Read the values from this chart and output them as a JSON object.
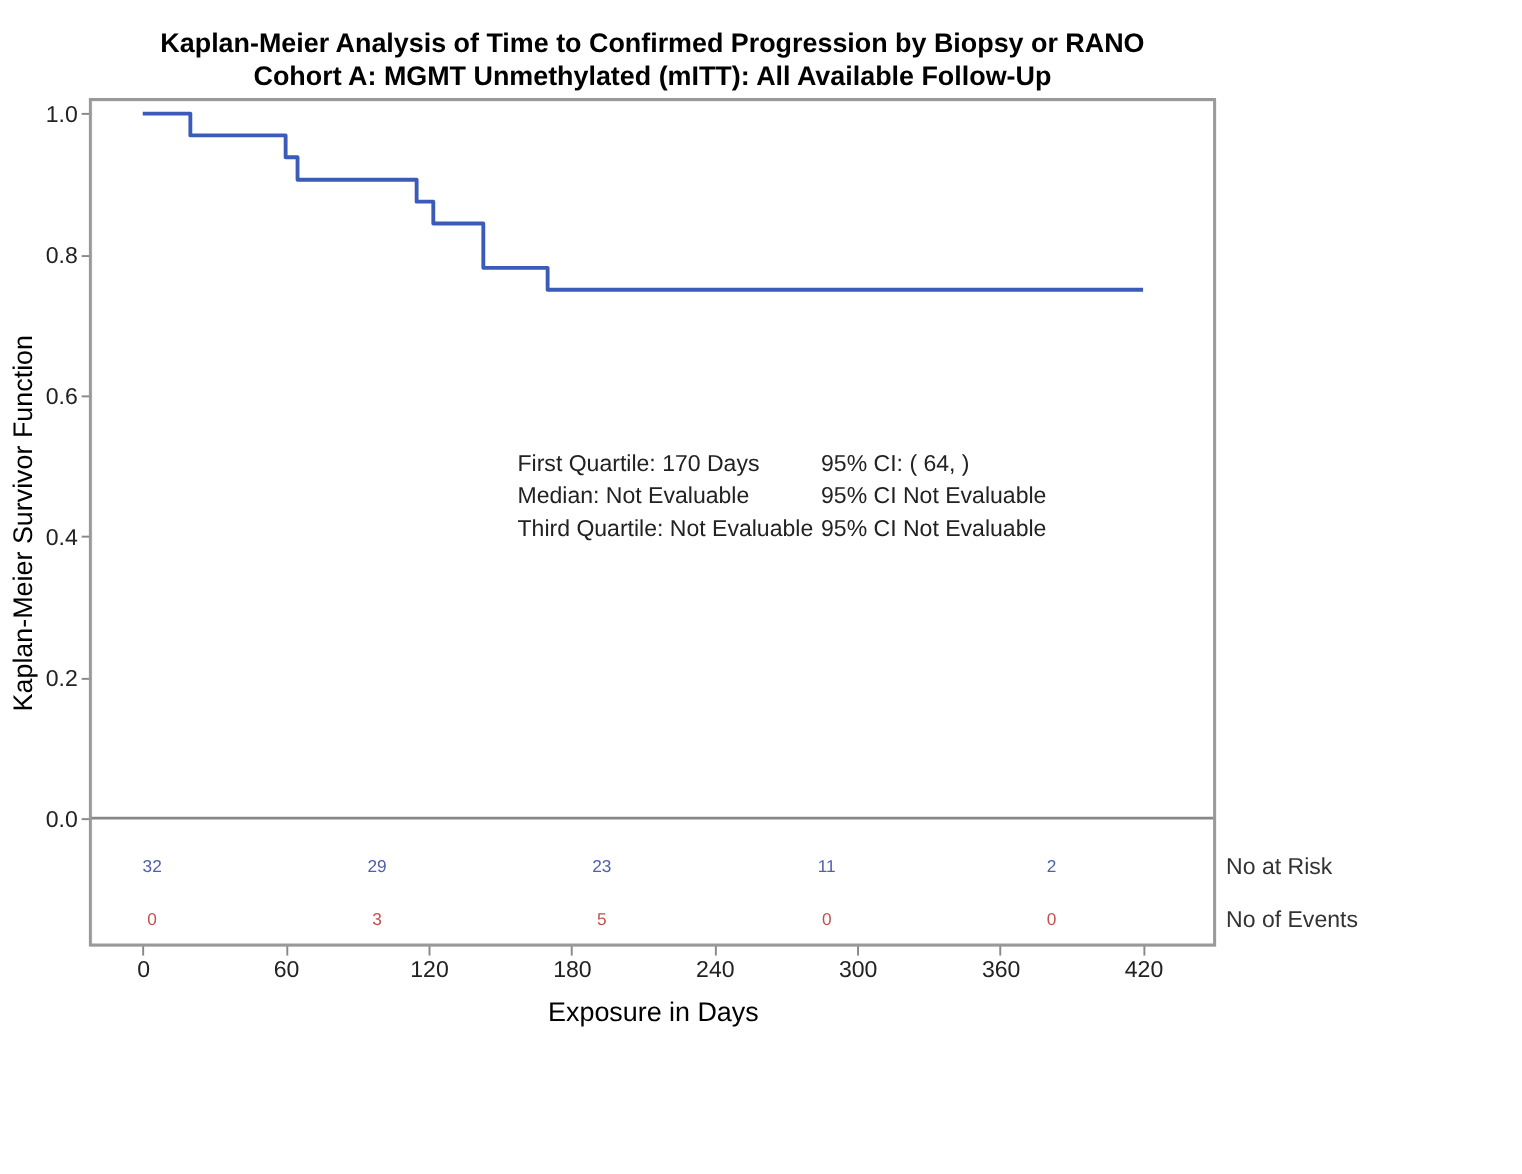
{
  "chart_data": {
    "type": "step",
    "title": "Kaplan-Meier Analysis of Time to Confirmed Progression by Biopsy or RANO",
    "subtitle": "Cohort A: MGMT Unmethylated (mITT): All Available Follow-Up",
    "xlabel": "Exposure in Days",
    "ylabel": "Kaplan-Meier Survivor Function",
    "series": [
      {
        "color": "#3a5cb8",
        "x": [
          0,
          20,
          60,
          65,
          115,
          122,
          143,
          170,
          420
        ],
        "values": [
          1.0,
          0.969,
          0.938,
          0.906,
          0.875,
          0.844,
          0.781,
          0.75,
          0.75
        ]
      }
    ],
    "xlim": [
      -22,
      450
    ],
    "xticks": [
      0,
      60,
      120,
      180,
      240,
      300,
      360,
      420
    ],
    "ylim": [
      -0.18,
      1.02
    ],
    "yticks": [
      {
        "value": 0,
        "label": "0.0"
      },
      0.2,
      0.4,
      0.6,
      0.8,
      {
        "value": 1,
        "label": "1.0"
      }
    ],
    "ref_lines": [
      {
        "axis": "y",
        "value": 0,
        "color": "#888888"
      }
    ],
    "grid": false,
    "marker": "none",
    "line_style": "solid",
    "annotations": [
      "First Quartile: 170 Days",
      "Median: Not Evaluable",
      "Third Quartile: Not Evaluable",
      "95% CI: ( 64, )",
      "95% CI Not Evaluable",
      "95% CI Not Evaluable",
      "32",
      "29",
      "23",
      "11",
      "2",
      "0",
      "3",
      "5",
      "0",
      "0",
      "No at Risk",
      "No of Events"
    ]
  }
}
